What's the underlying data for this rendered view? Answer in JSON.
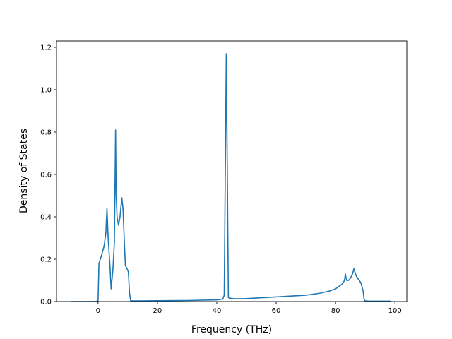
{
  "chart_data": {
    "type": "line",
    "title": "",
    "xlabel": "Frequency (THz)",
    "ylabel": "Density of States",
    "xlim": [
      -14,
      104
    ],
    "ylim": [
      0,
      1.23
    ],
    "xticks": [
      0,
      20,
      40,
      60,
      80,
      100
    ],
    "yticks": [
      0.0,
      0.2,
      0.4,
      0.6,
      0.8,
      1.0,
      1.2
    ],
    "ytick_labels": [
      "0.0",
      "0.2",
      "0.4",
      "0.6",
      "0.8",
      "1.0",
      "1.2"
    ],
    "grid": false,
    "legend": "none",
    "colors": {
      "line": "#1f77b4"
    },
    "series": [
      {
        "x": [
          -9,
          -1,
          0,
          0.3,
          1,
          2,
          2.6,
          3,
          3.4,
          4,
          4.4,
          5,
          5.5,
          5.9,
          6.1,
          6.4,
          6.9,
          7.4,
          8,
          8.4,
          8.8,
          9.2,
          9.6,
          10.2,
          10.6,
          11,
          12,
          14,
          20,
          30,
          40,
          42,
          42.5,
          43.2,
          43.9,
          44.2,
          46,
          50,
          55,
          60,
          65,
          70,
          75,
          78,
          80,
          81,
          82,
          82.6,
          83,
          83.3,
          83.7,
          84.4,
          85,
          85.7,
          86.2,
          86.5,
          87,
          87.7,
          88.5,
          89.3,
          89.6,
          90,
          91,
          98.5
        ],
        "y": [
          0,
          0,
          0.003,
          0.18,
          0.21,
          0.26,
          0.32,
          0.44,
          0.3,
          0.17,
          0.06,
          0.15,
          0.28,
          0.81,
          0.5,
          0.4,
          0.36,
          0.4,
          0.49,
          0.44,
          0.3,
          0.17,
          0.16,
          0.14,
          0.04,
          0.004,
          0.003,
          0.003,
          0.004,
          0.005,
          0.008,
          0.012,
          0.03,
          1.17,
          0.02,
          0.016,
          0.013,
          0.014,
          0.018,
          0.022,
          0.026,
          0.03,
          0.04,
          0.05,
          0.06,
          0.07,
          0.08,
          0.09,
          0.1,
          0.13,
          0.1,
          0.1,
          0.11,
          0.13,
          0.155,
          0.14,
          0.12,
          0.105,
          0.09,
          0.05,
          0.01,
          0.003,
          0.002,
          0.002
        ]
      }
    ]
  }
}
